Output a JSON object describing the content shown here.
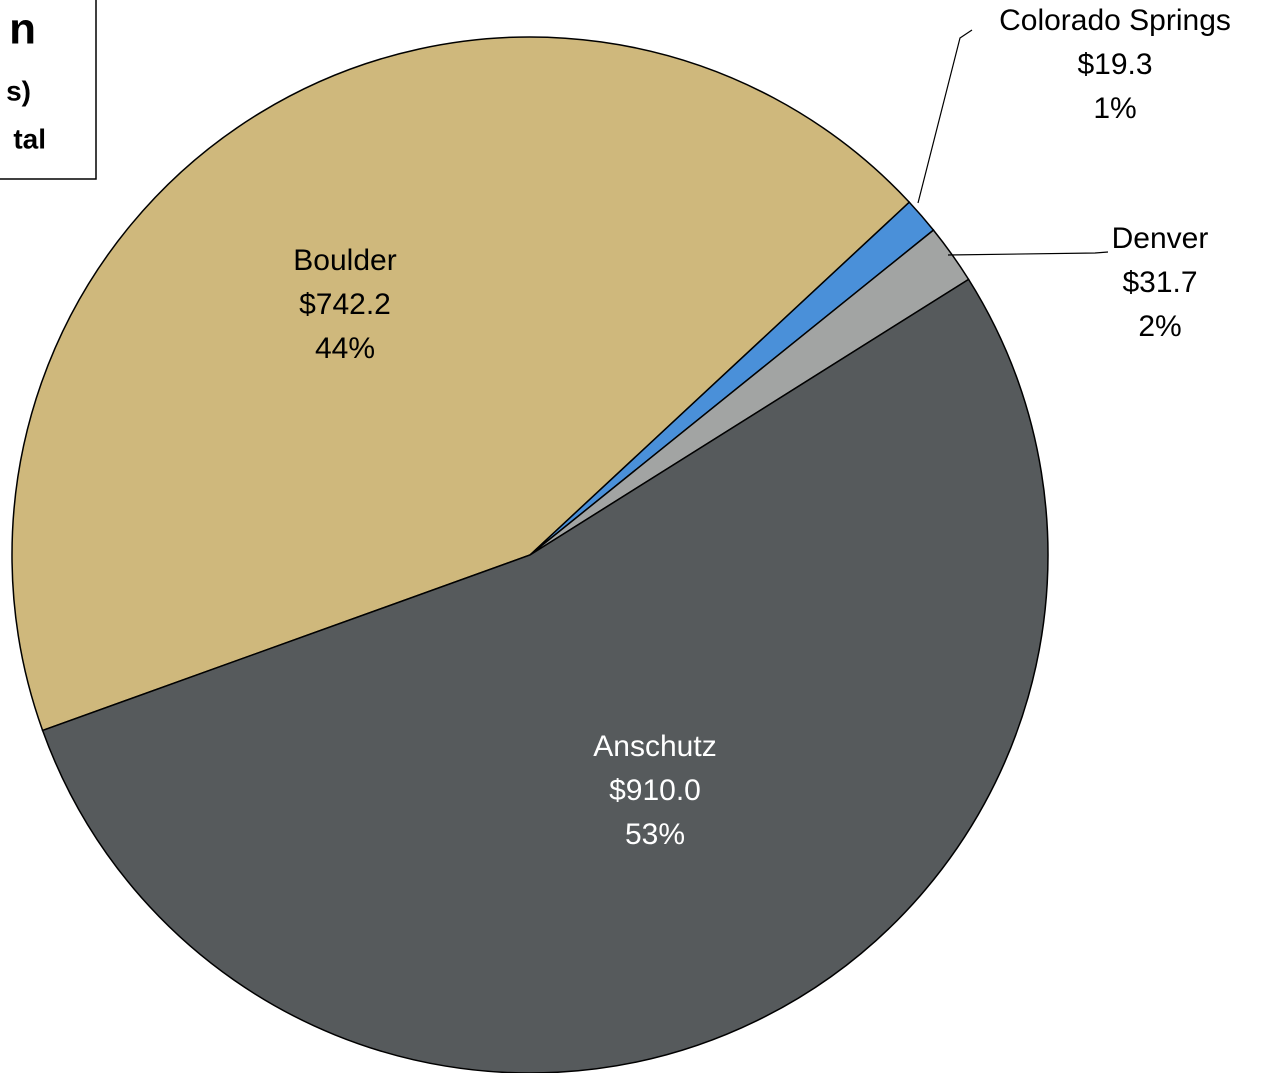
{
  "chart_data": {
    "type": "pie",
    "title": "n",
    "subtitle": "s)",
    "note": "tal",
    "categories": [
      "Boulder",
      "Colorado Springs",
      "Denver",
      "Anschutz"
    ],
    "values": [
      742.2,
      19.3,
      31.7,
      910.0
    ],
    "value_labels": [
      "$742.2",
      "$19.3",
      "$31.7",
      "$910.0"
    ],
    "percent_labels": [
      "44%",
      "1%",
      "2%",
      "53%"
    ],
    "colors": [
      "#cfb87c",
      "#4a90d9",
      "#a2a4a3",
      "#565a5c"
    ]
  }
}
